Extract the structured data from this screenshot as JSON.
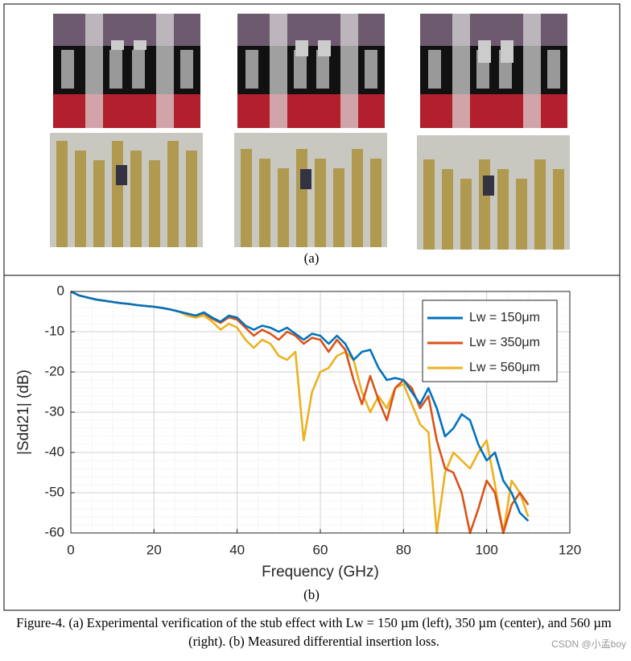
{
  "panel_a_label": "(a)",
  "panel_b_label": "(b)",
  "caption": "Figure-4. (a) Experimental verification of the stub effect with Lw = 150 µm (left), 350 µm (center), and 560 µm (right). (b) Measured differential insertion loss.",
  "watermark": "CSDN @小孟boy",
  "chart_data": {
    "type": "line",
    "xlabel": "Frequency (GHz)",
    "ylabel": "|Sdd21| (dB)",
    "xlim": [
      0,
      120
    ],
    "xticks": [
      0,
      20,
      40,
      60,
      80,
      100,
      120
    ],
    "ylim": [
      -60,
      0
    ],
    "yticks": [
      0,
      -10,
      -20,
      -30,
      -40,
      -50,
      -60
    ],
    "grid": true,
    "legend": "top-right",
    "x": [
      0,
      2,
      4,
      6,
      8,
      10,
      12,
      14,
      16,
      18,
      20,
      22,
      24,
      26,
      28,
      30,
      32,
      34,
      36,
      38,
      40,
      42,
      44,
      46,
      48,
      50,
      52,
      54,
      56,
      58,
      60,
      62,
      64,
      66,
      68,
      70,
      72,
      74,
      76,
      78,
      80,
      82,
      84,
      86,
      88,
      90,
      92,
      94,
      96,
      98,
      100,
      102,
      104,
      106,
      108,
      110
    ],
    "series": [
      {
        "name": "Lw = 150μm",
        "color": "#0072bd",
        "values": [
          0,
          -1,
          -1.5,
          -2,
          -2.3,
          -2.6,
          -2.9,
          -3.1,
          -3.4,
          -3.6,
          -3.8,
          -4.1,
          -4.5,
          -5,
          -5.5,
          -6,
          -5.2,
          -6.5,
          -7.5,
          -6,
          -6.5,
          -8.5,
          -9.5,
          -8.5,
          -9,
          -10,
          -9,
          -10.5,
          -12,
          -10.5,
          -11,
          -13,
          -11,
          -13,
          -17,
          -15,
          -14.5,
          -19,
          -22,
          -21.5,
          -22,
          -25,
          -28,
          -24,
          -29,
          -36,
          -34,
          -30.5,
          -32,
          -38,
          -42,
          -40,
          -47,
          -50,
          -55,
          -57
        ]
      },
      {
        "name": "Lw = 350μm",
        "color": "#d95319",
        "values": [
          0,
          -1,
          -1.5,
          -2,
          -2.3,
          -2.6,
          -2.9,
          -3.1,
          -3.4,
          -3.6,
          -3.8,
          -4.1,
          -4.5,
          -5,
          -5.5,
          -6,
          -5.4,
          -6.8,
          -7.8,
          -6.4,
          -7,
          -9,
          -11,
          -9.5,
          -10.5,
          -12,
          -10,
          -11,
          -13,
          -11.5,
          -12,
          -15,
          -12,
          -14.5,
          -22,
          -28,
          -21,
          -27,
          -32,
          -24,
          -22,
          -24,
          -29,
          -26,
          -37,
          -44,
          -45,
          -50,
          -60,
          -54,
          -47,
          -50,
          -60,
          -53,
          -50,
          -53
        ]
      },
      {
        "name": "Lw = 560μm",
        "color": "#edb120",
        "values": [
          0,
          -1,
          -1.5,
          -2,
          -2.3,
          -2.6,
          -2.9,
          -3.1,
          -3.4,
          -3.6,
          -3.8,
          -4.1,
          -4.5,
          -5,
          -6,
          -6.5,
          -6,
          -7.5,
          -9.5,
          -8,
          -9,
          -12,
          -14,
          -12,
          -13,
          -16,
          -17,
          -15,
          -37,
          -25,
          -20,
          -19,
          -16,
          -15,
          -17,
          -25,
          -30,
          -26,
          -29,
          -24,
          -23,
          -28,
          -33,
          -35,
          -60,
          -45,
          -40,
          -42,
          -44,
          -40,
          -37,
          -48,
          -60,
          -47,
          -50,
          -56
        ]
      }
    ]
  }
}
